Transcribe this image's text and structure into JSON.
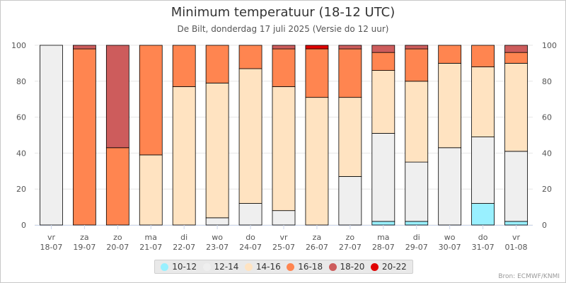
{
  "title": "Minimum temperatuur (18-12 UTC)",
  "subtitle": "De Bilt, donderdag 17 juli 2025 (Versie do 12 uur)",
  "source": "Bron: ECMWF/KNMI",
  "chart_data": {
    "type": "bar",
    "stacked": true,
    "percent": true,
    "categories": [
      [
        "vr",
        "18-07"
      ],
      [
        "za",
        "19-07"
      ],
      [
        "zo",
        "20-07"
      ],
      [
        "ma",
        "21-07"
      ],
      [
        "di",
        "22-07"
      ],
      [
        "wo",
        "23-07"
      ],
      [
        "do",
        "24-07"
      ],
      [
        "vr",
        "25-07"
      ],
      [
        "za",
        "26-07"
      ],
      [
        "zo",
        "27-07"
      ],
      [
        "ma",
        "28-07"
      ],
      [
        "di",
        "29-07"
      ],
      [
        "wo",
        "30-07"
      ],
      [
        "do",
        "31-07"
      ],
      [
        "vr",
        "01-08"
      ]
    ],
    "ylim": [
      0,
      100
    ],
    "yticks": [
      0,
      20,
      40,
      60,
      80,
      100
    ],
    "secondary_y_axis": true,
    "grid": true,
    "legend": "bottom",
    "series": [
      {
        "name": "10-12",
        "color": "#99f0ff",
        "values": [
          0,
          0,
          0,
          0,
          0,
          0,
          0,
          0,
          0,
          0,
          2,
          2,
          0,
          12,
          2
        ]
      },
      {
        "name": "12-14",
        "color": "#efefef",
        "values": [
          100,
          0,
          0,
          0,
          0,
          4,
          12,
          8,
          0,
          27,
          49,
          33,
          43,
          37,
          39
        ]
      },
      {
        "name": "14-16",
        "color": "#ffe3c1",
        "values": [
          0,
          0,
          0,
          39,
          77,
          75,
          75,
          69,
          71,
          44,
          35,
          45,
          47,
          39,
          49
        ]
      },
      {
        "name": "16-18",
        "color": "#ff8550",
        "values": [
          0,
          98,
          43,
          61,
          23,
          21,
          13,
          21,
          27,
          27,
          10,
          18,
          10,
          12,
          6
        ]
      },
      {
        "name": "18-20",
        "color": "#cd5c5c",
        "values": [
          0,
          2,
          57,
          0,
          0,
          0,
          0,
          2,
          0,
          2,
          4,
          2,
          0,
          0,
          4
        ]
      },
      {
        "name": "20-22",
        "color": "#e00000",
        "values": [
          0,
          0,
          0,
          0,
          0,
          0,
          0,
          0,
          2,
          0,
          0,
          0,
          0,
          0,
          0
        ]
      }
    ]
  }
}
